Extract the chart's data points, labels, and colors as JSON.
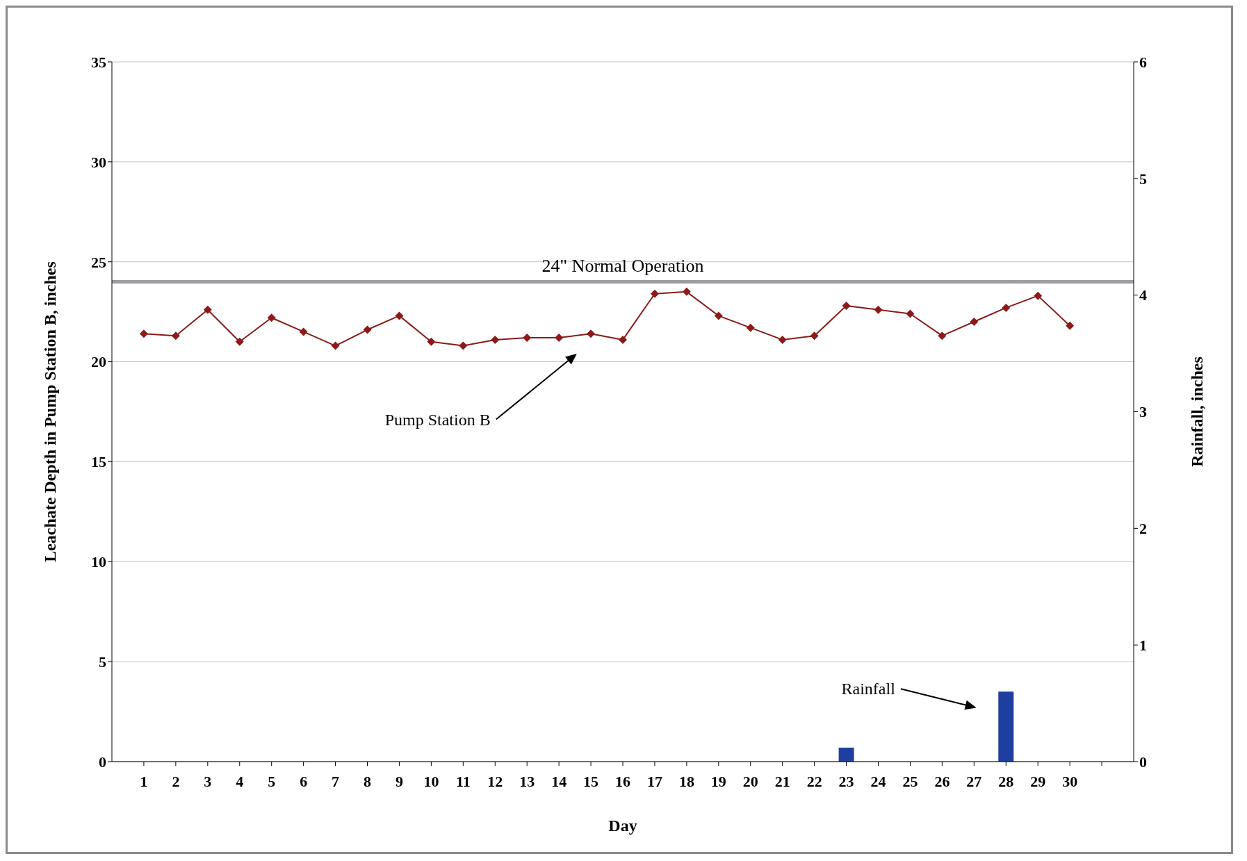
{
  "chart_data": {
    "type": "line",
    "xlabel": "Day",
    "ylabel": "Leachate Depth in Pump Station B, inches",
    "y2label": "Rainfall, inches",
    "x": [
      1,
      2,
      3,
      4,
      5,
      6,
      7,
      8,
      9,
      10,
      11,
      12,
      13,
      14,
      15,
      16,
      17,
      18,
      19,
      20,
      21,
      22,
      23,
      24,
      25,
      26,
      27,
      28,
      29,
      30
    ],
    "xlim": [
      0,
      32
    ],
    "xticks": [
      1,
      2,
      3,
      4,
      5,
      6,
      7,
      8,
      9,
      10,
      11,
      12,
      13,
      14,
      15,
      16,
      17,
      18,
      19,
      20,
      21,
      22,
      23,
      24,
      25,
      26,
      27,
      28,
      29,
      30,
      {
        "value": 31,
        "label": null
      }
    ],
    "ylim": [
      0,
      35
    ],
    "yticks": [
      0,
      5,
      10,
      15,
      20,
      25,
      30,
      35
    ],
    "y2lim": [
      0,
      6
    ],
    "y2ticks": [
      0,
      1,
      2,
      3,
      4,
      5,
      6
    ],
    "series": [
      {
        "color": "#8b1a1a",
        "marker": "diamond",
        "line_style": "solid",
        "values": [
          21.4,
          21.3,
          22.6,
          21.0,
          22.2,
          21.5,
          20.8,
          21.6,
          22.3,
          21.0,
          20.8,
          21.1,
          21.2,
          21.2,
          21.4,
          21.1,
          23.4,
          23.5,
          22.3,
          21.7,
          21.1,
          21.3,
          22.8,
          22.6,
          22.4,
          21.3,
          22.0,
          22.7,
          23.3,
          21.8
        ]
      },
      {
        "color": "#1f3fa0",
        "type": "bar",
        "axis": "y2",
        "values": [
          null,
          null,
          null,
          null,
          null,
          null,
          null,
          null,
          null,
          null,
          null,
          null,
          null,
          null,
          null,
          null,
          null,
          null,
          null,
          null,
          null,
          null,
          0.12,
          null,
          null,
          null,
          null,
          0.6,
          null,
          null
        ]
      }
    ],
    "ref_lines": [
      {
        "axis": "y",
        "value": 24,
        "label": "24\" Normal Operation",
        "color": "#9a9ea3",
        "line_style": "solid"
      }
    ],
    "annotations": [
      "Pump Station B",
      "Rainfall"
    ],
    "grid": "y",
    "legend": false
  }
}
